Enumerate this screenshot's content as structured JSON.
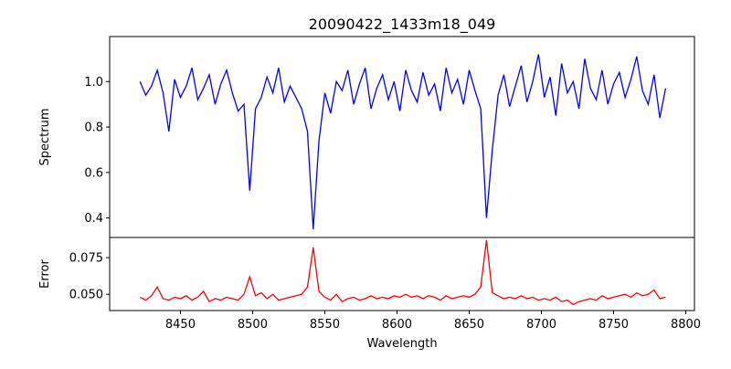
{
  "chart_data": [
    {
      "type": "line",
      "title": "20090422_1433m18_049",
      "xlabel": "",
      "ylabel": "Spectrum",
      "xlim": [
        8401,
        8806
      ],
      "ylim": [
        0.314,
        1.198
      ],
      "yticks": [
        0.4,
        0.6,
        0.8,
        1.0
      ],
      "ytick_labels": [
        "0.4",
        "0.6",
        "0.8",
        "1.0"
      ],
      "grid": false,
      "color": "#0000ff",
      "x": [
        8422,
        8426,
        8430,
        8434,
        8438,
        8442,
        8446,
        8450,
        8454,
        8458,
        8462,
        8466,
        8470,
        8474,
        8478,
        8482,
        8486,
        8490,
        8494,
        8498,
        8502,
        8506,
        8510,
        8514,
        8518,
        8522,
        8526,
        8530,
        8534,
        8538,
        8542,
        8546,
        8550,
        8554,
        8558,
        8562,
        8566,
        8570,
        8574,
        8578,
        8582,
        8586,
        8590,
        8594,
        8598,
        8602,
        8606,
        8610,
        8614,
        8618,
        8622,
        8626,
        8630,
        8634,
        8638,
        8642,
        8646,
        8650,
        8654,
        8658,
        8662,
        8666,
        8670,
        8674,
        8678,
        8682,
        8686,
        8690,
        8694,
        8698,
        8702,
        8706,
        8710,
        8714,
        8718,
        8722,
        8726,
        8730,
        8734,
        8738,
        8742,
        8746,
        8750,
        8754,
        8758,
        8762,
        8766,
        8770,
        8774,
        8778,
        8782,
        8786
      ],
      "values": [
        1.0,
        0.94,
        0.98,
        1.05,
        0.95,
        0.78,
        1.01,
        0.93,
        0.98,
        1.06,
        0.92,
        0.97,
        1.03,
        0.9,
        0.99,
        1.05,
        0.95,
        0.87,
        0.9,
        0.52,
        0.88,
        0.93,
        1.02,
        0.95,
        1.06,
        0.91,
        0.98,
        0.93,
        0.88,
        0.78,
        0.35,
        0.74,
        0.95,
        0.86,
        1.0,
        0.96,
        1.05,
        0.9,
        0.99,
        1.06,
        0.88,
        0.97,
        1.03,
        0.92,
        1.0,
        0.87,
        1.05,
        0.96,
        0.91,
        1.04,
        0.94,
        0.99,
        0.87,
        1.06,
        0.95,
        1.01,
        0.9,
        1.05,
        0.96,
        0.88,
        0.4,
        0.7,
        0.94,
        1.03,
        0.89,
        0.98,
        1.07,
        0.91,
        1.0,
        1.12,
        0.93,
        1.02,
        0.85,
        1.08,
        0.95,
        1.0,
        0.88,
        1.1,
        0.97,
        0.92,
        1.05,
        0.9,
        0.99,
        1.04,
        0.93,
        1.01,
        1.11,
        0.96,
        0.9,
        1.03,
        0.84,
        0.97
      ]
    },
    {
      "type": "line",
      "title": "",
      "xlabel": "Wavelength",
      "ylabel": "Error",
      "xlim": [
        8401,
        8806
      ],
      "ylim": [
        0.0389,
        0.0888
      ],
      "xticks": [
        8450,
        8500,
        8550,
        8600,
        8650,
        8700,
        8750,
        8800
      ],
      "xtick_labels": [
        "8450",
        "8500",
        "8550",
        "8600",
        "8650",
        "8700",
        "8750",
        "8800"
      ],
      "yticks": [
        0.05,
        0.075
      ],
      "ytick_labels": [
        "0.050",
        "0.075"
      ],
      "grid": false,
      "color": "#ff0000",
      "x": [
        8422,
        8426,
        8430,
        8434,
        8438,
        8442,
        8446,
        8450,
        8454,
        8458,
        8462,
        8466,
        8470,
        8474,
        8478,
        8482,
        8486,
        8490,
        8494,
        8498,
        8502,
        8506,
        8510,
        8514,
        8518,
        8522,
        8526,
        8530,
        8534,
        8538,
        8542,
        8546,
        8550,
        8554,
        8558,
        8562,
        8566,
        8570,
        8574,
        8578,
        8582,
        8586,
        8590,
        8594,
        8598,
        8602,
        8606,
        8610,
        8614,
        8618,
        8622,
        8626,
        8630,
        8634,
        8638,
        8642,
        8646,
        8650,
        8654,
        8658,
        8662,
        8666,
        8670,
        8674,
        8678,
        8682,
        8686,
        8690,
        8694,
        8698,
        8702,
        8706,
        8710,
        8714,
        8718,
        8722,
        8726,
        8730,
        8734,
        8738,
        8742,
        8746,
        8750,
        8754,
        8758,
        8762,
        8766,
        8770,
        8774,
        8778,
        8782,
        8786
      ],
      "values": [
        0.048,
        0.046,
        0.049,
        0.055,
        0.047,
        0.046,
        0.048,
        0.047,
        0.049,
        0.046,
        0.048,
        0.052,
        0.045,
        0.047,
        0.046,
        0.048,
        0.047,
        0.046,
        0.05,
        0.062,
        0.049,
        0.051,
        0.047,
        0.05,
        0.046,
        0.047,
        0.048,
        0.049,
        0.05,
        0.055,
        0.082,
        0.052,
        0.048,
        0.046,
        0.05,
        0.045,
        0.047,
        0.048,
        0.046,
        0.047,
        0.049,
        0.047,
        0.048,
        0.047,
        0.049,
        0.048,
        0.05,
        0.048,
        0.049,
        0.047,
        0.049,
        0.048,
        0.046,
        0.049,
        0.047,
        0.048,
        0.049,
        0.048,
        0.05,
        0.055,
        0.087,
        0.051,
        0.049,
        0.047,
        0.048,
        0.047,
        0.049,
        0.047,
        0.048,
        0.046,
        0.047,
        0.046,
        0.048,
        0.045,
        0.046,
        0.043,
        0.045,
        0.046,
        0.047,
        0.046,
        0.049,
        0.047,
        0.048,
        0.049,
        0.05,
        0.048,
        0.051,
        0.049,
        0.05,
        0.053,
        0.047,
        0.048
      ]
    }
  ]
}
